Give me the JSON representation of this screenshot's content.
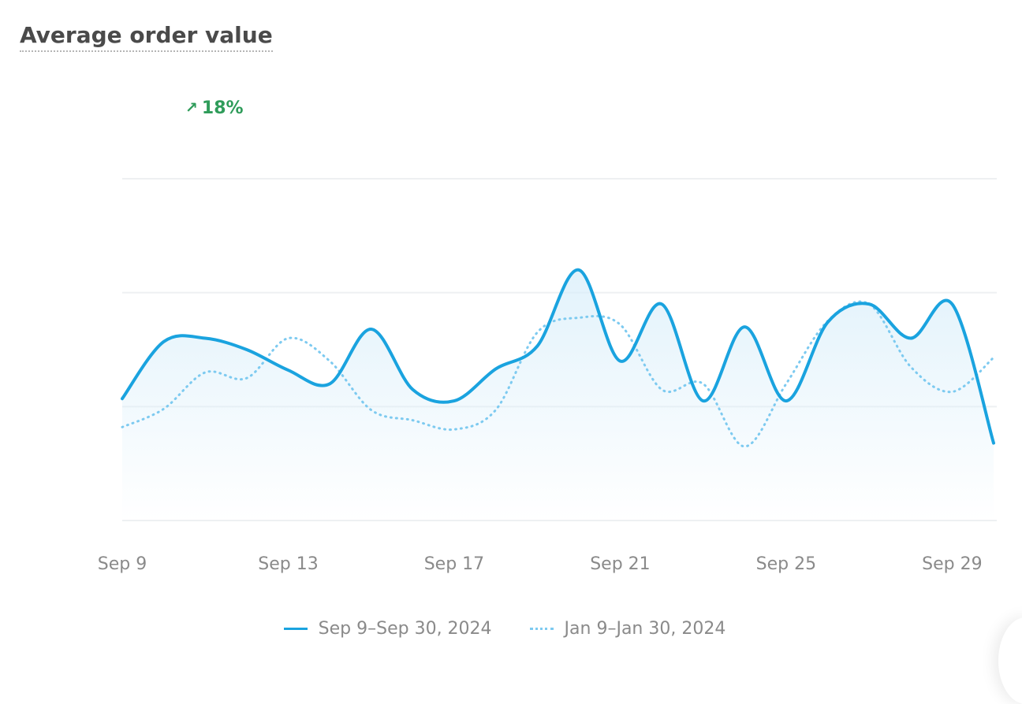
{
  "title": "Average order value",
  "change": {
    "icon": "arrow-up-right-icon",
    "value": "18%",
    "color": "#2f9c5a"
  },
  "colors": {
    "current": "#1aa3df",
    "previous": "#7dcaf0",
    "grid": "#eef0f2",
    "fill": "#d8eefa"
  },
  "chart_data": {
    "type": "area",
    "title": "Average order value",
    "xlabel": "",
    "ylabel": "",
    "x_tick_labels": [
      "Sep 9",
      "Sep 13",
      "Sep 17",
      "Sep 21",
      "Sep 25",
      "Sep 29"
    ],
    "x": [
      9,
      10,
      11,
      12,
      13,
      14,
      15,
      16,
      17,
      18,
      19,
      20,
      21,
      22,
      23,
      24,
      25,
      26,
      27,
      28,
      29,
      30
    ],
    "ylim": [
      0,
      3
    ],
    "grid": true,
    "y_gridlines": [
      0,
      1,
      2,
      3
    ],
    "y_tick_labels_shown": false,
    "series": [
      {
        "name": "Sep 9–Sep 30, 2024",
        "style": "solid",
        "values": [
          1.07,
          1.57,
          1.6,
          1.5,
          1.32,
          1.2,
          1.68,
          1.15,
          1.05,
          1.33,
          1.53,
          2.2,
          1.4,
          1.9,
          1.05,
          1.7,
          1.05,
          1.74,
          1.9,
          1.6,
          1.9,
          0.68
        ]
      },
      {
        "name": "Jan 9–Jan 30, 2024",
        "style": "dotted",
        "values": [
          0.82,
          0.98,
          1.3,
          1.25,
          1.6,
          1.4,
          0.97,
          0.88,
          0.8,
          0.97,
          1.65,
          1.78,
          1.72,
          1.15,
          1.2,
          0.65,
          1.2,
          1.75,
          1.9,
          1.35,
          1.13,
          1.43
        ]
      }
    ],
    "legend": "bottom-center"
  }
}
